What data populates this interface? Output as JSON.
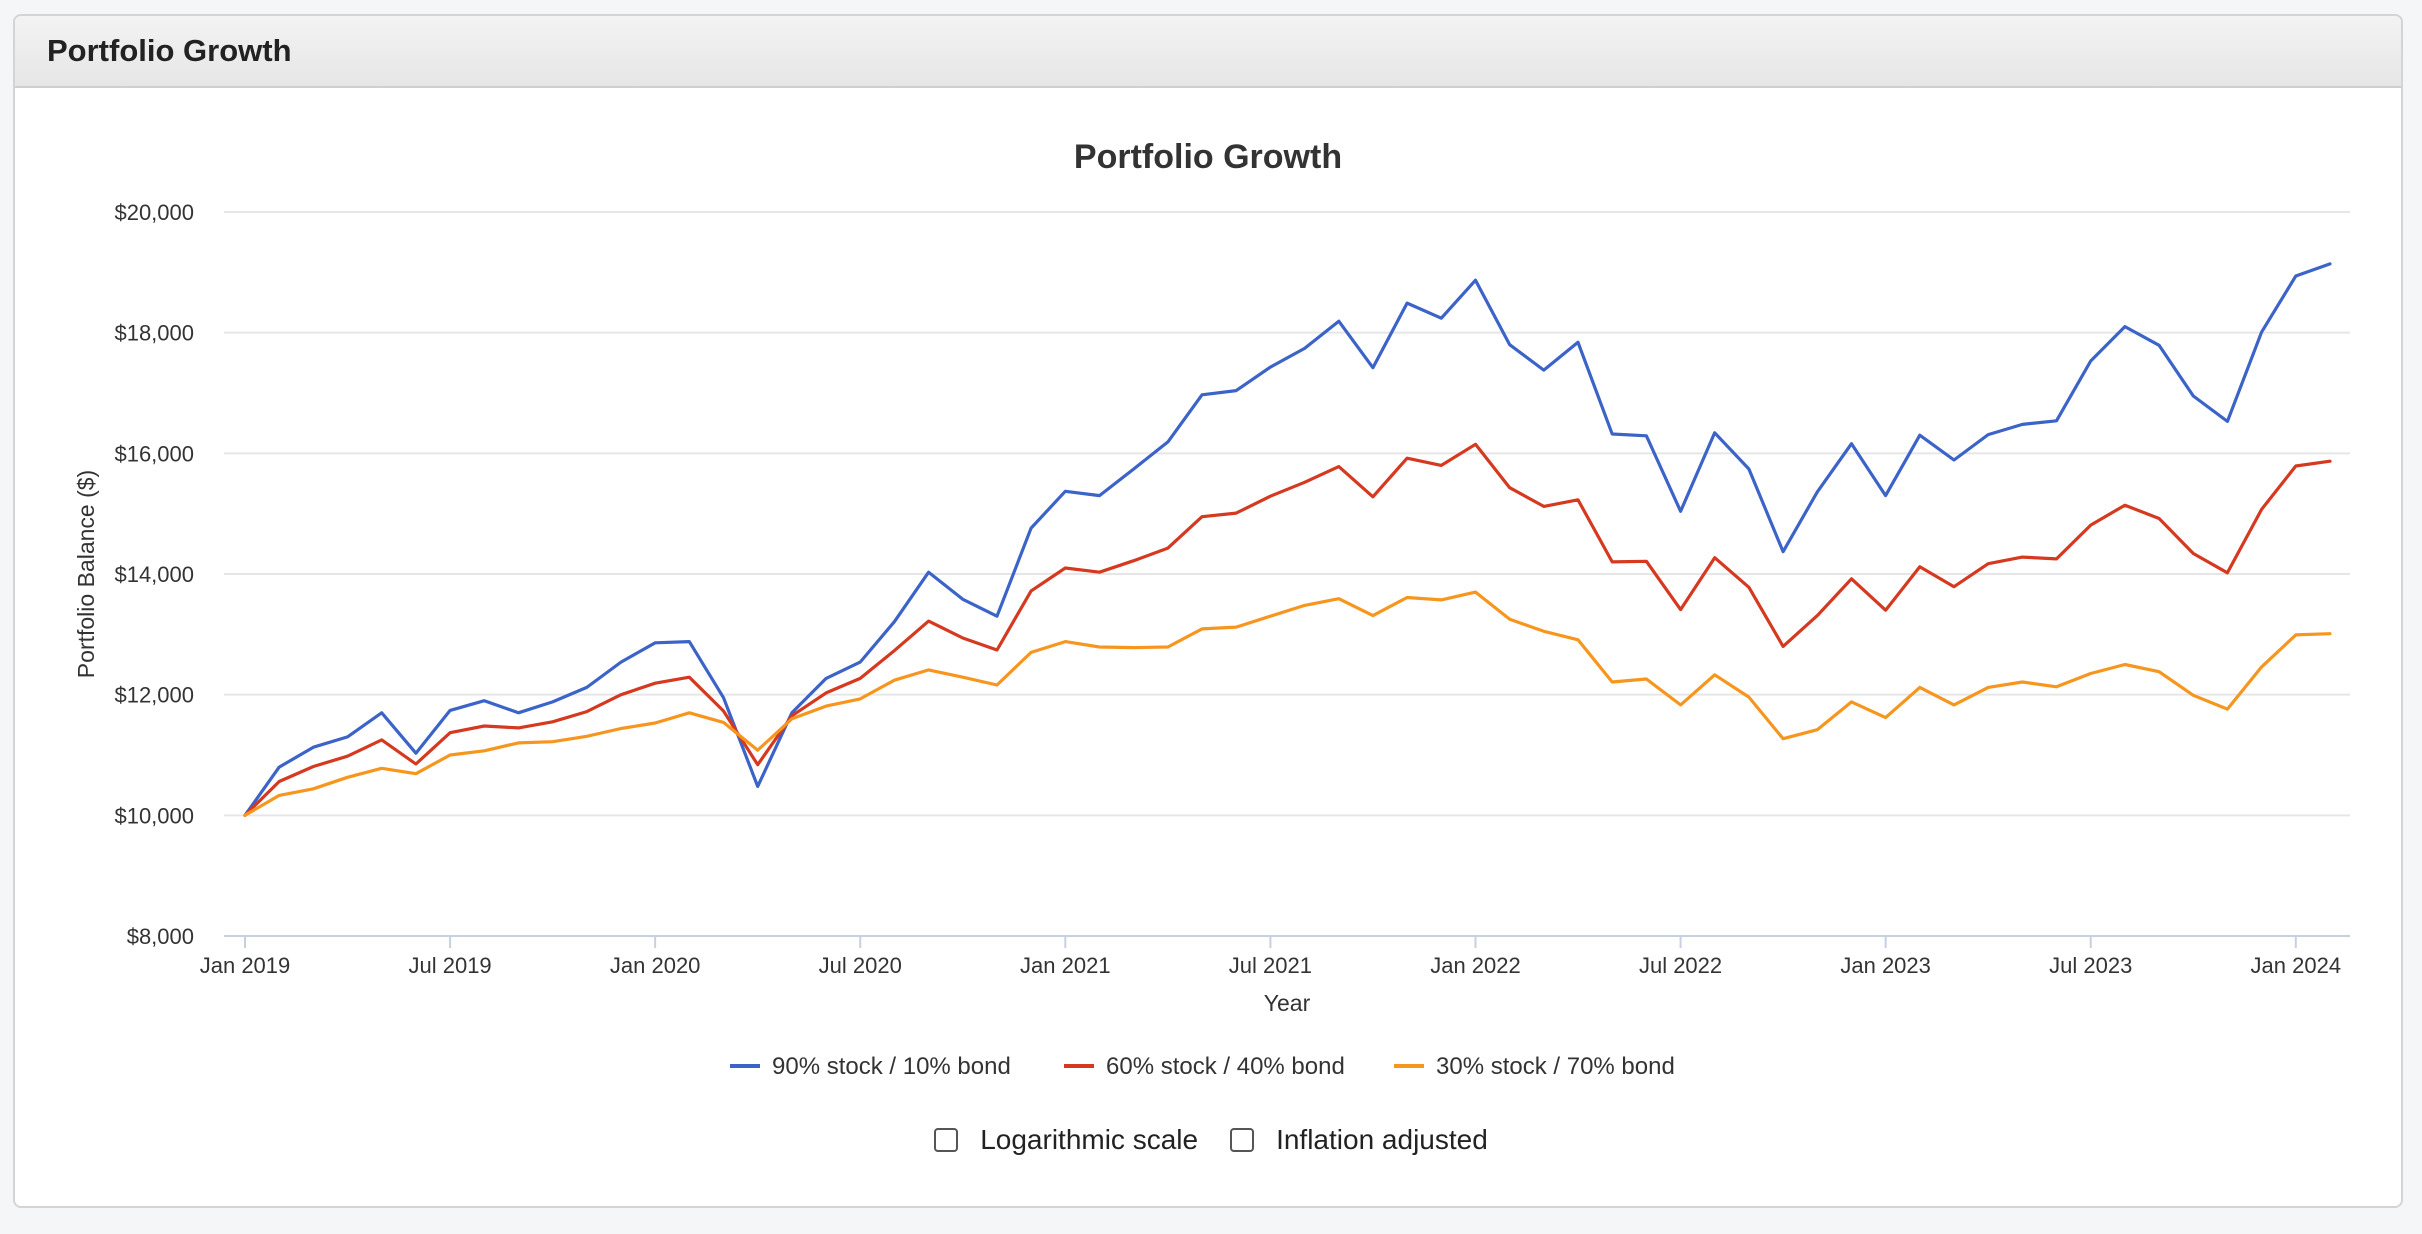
{
  "panel": {
    "title": "Portfolio Growth"
  },
  "chart_data": {
    "type": "line",
    "title": "Portfolio Growth",
    "xlabel": "Year",
    "ylabel": "Portfolio Balance ($)",
    "ylim": [
      8000,
      20000
    ],
    "yticks": [
      8000,
      10000,
      12000,
      14000,
      16000,
      18000,
      20000
    ],
    "ytick_labels": [
      "$8,000",
      "$10,000",
      "$12,000",
      "$14,000",
      "$16,000",
      "$18,000",
      "$20,000"
    ],
    "xtick_labels": [
      "Jan 2019",
      "Jul 2019",
      "Jan 2020",
      "Jul 2020",
      "Jan 2021",
      "Jul 2021",
      "Jan 2022",
      "Jul 2022",
      "Jan 2023",
      "Jul 2023",
      "Jan 2024"
    ],
    "xtick_months": [
      0,
      6,
      12,
      18,
      24,
      30,
      36,
      42,
      48,
      54,
      60
    ],
    "x_start": "2019-01",
    "x_end": "2024-03",
    "grid": true,
    "legend": "bottom",
    "series": [
      {
        "name": "90% stock / 10% bond",
        "color": "#3b63c8",
        "values": [
          10000,
          10800,
          11130,
          11300,
          11700,
          11030,
          11740,
          11900,
          11700,
          11880,
          12120,
          12540,
          12860,
          12880,
          11950,
          10480,
          11700,
          12270,
          12540,
          13210,
          14030,
          13580,
          13300,
          14760,
          15370,
          15300,
          15740,
          16190,
          16970,
          17040,
          17430,
          17740,
          18190,
          17420,
          18490,
          18240,
          18870,
          17800,
          17380,
          17840,
          16320,
          16290,
          15040,
          16340,
          15740,
          14370,
          15360,
          16160,
          15300,
          16300,
          15890,
          16310,
          16480,
          16540,
          17530,
          18100,
          17790,
          16950,
          16530,
          18010,
          18940,
          19140
        ]
      },
      {
        "name": "60% stock / 40% bond",
        "color": "#d5391f",
        "values": [
          10000,
          10560,
          10810,
          10980,
          11250,
          10850,
          11370,
          11480,
          11450,
          11550,
          11720,
          12000,
          12190,
          12290,
          11730,
          10840,
          11650,
          12030,
          12270,
          12730,
          13220,
          12940,
          12740,
          13720,
          14100,
          14030,
          14220,
          14430,
          14950,
          15010,
          15290,
          15520,
          15780,
          15280,
          15920,
          15800,
          16150,
          15430,
          15120,
          15230,
          14200,
          14210,
          13410,
          14270,
          13780,
          12800,
          13310,
          13920,
          13400,
          14120,
          13790,
          14170,
          14280,
          14250,
          14810,
          15140,
          14920,
          14340,
          14020,
          15070,
          15790,
          15870
        ]
      },
      {
        "name": "30% stock / 70% bond",
        "color": "#f7961e",
        "values": [
          10000,
          10330,
          10440,
          10630,
          10780,
          10690,
          11000,
          11070,
          11200,
          11220,
          11310,
          11440,
          11530,
          11700,
          11540,
          11080,
          11600,
          11810,
          11930,
          12240,
          12410,
          12290,
          12160,
          12700,
          12880,
          12790,
          12780,
          12790,
          13090,
          13120,
          13300,
          13480,
          13590,
          13310,
          13610,
          13570,
          13700,
          13250,
          13050,
          12910,
          12210,
          12260,
          11830,
          12330,
          11960,
          11270,
          11420,
          11880,
          11620,
          12120,
          11830,
          12120,
          12210,
          12130,
          12350,
          12500,
          12380,
          11990,
          11760,
          12460,
          12990,
          13010
        ]
      }
    ]
  },
  "options": {
    "log_label": "Logarithmic scale",
    "inflation_label": "Inflation adjusted"
  }
}
